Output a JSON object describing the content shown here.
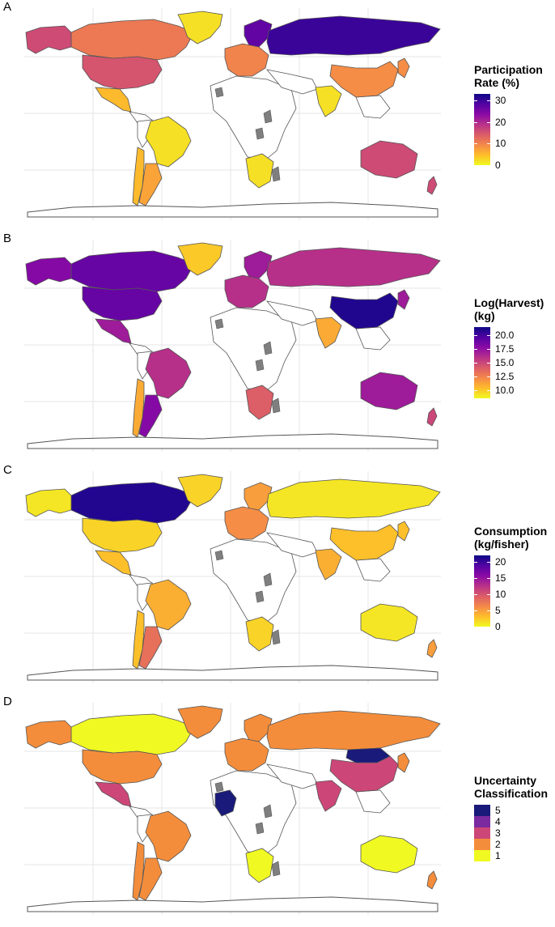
{
  "colors": {
    "no_data": "#ffffff",
    "missing": "#7f7f7f",
    "border": "#555555",
    "grid": "#e6e6e6",
    "plasma": [
      "#0d0887",
      "#5302a3",
      "#8b0aa5",
      "#b83289",
      "#db5c68",
      "#f48849",
      "#febd2a",
      "#f0f921"
    ]
  },
  "chart_data": [
    {
      "type": "choropleth",
      "panel_label": "A",
      "legend_title": [
        "Participation",
        "Rate (%)"
      ],
      "scale": "continuous",
      "range": [
        0,
        33
      ],
      "ticks": [
        0,
        10,
        20,
        30
      ],
      "tick_labels": [
        "0",
        "10",
        "20",
        "30"
      ],
      "regions": [
        {
          "name": "Canada",
          "value": 11
        },
        {
          "name": "United States",
          "value": 15
        },
        {
          "name": "Mexico",
          "value": 5
        },
        {
          "name": "Greenland",
          "value": 2
        },
        {
          "name": "Alaska",
          "value": 16
        },
        {
          "name": "Brazil",
          "value": 2
        },
        {
          "name": "Argentina",
          "value": 7
        },
        {
          "name": "Chile",
          "value": 5
        },
        {
          "name": "Scandinavia",
          "value": 27
        },
        {
          "name": "Western Europe",
          "value": 10
        },
        {
          "name": "Russia",
          "value": 30
        },
        {
          "name": "China",
          "value": 9
        },
        {
          "name": "India",
          "value": 2
        },
        {
          "name": "Japan",
          "value": 9
        },
        {
          "name": "Australia",
          "value": 16
        },
        {
          "name": "New Zealand",
          "value": 16
        },
        {
          "name": "Southern Africa",
          "value": 2
        }
      ]
    },
    {
      "type": "choropleth",
      "panel_label": "B",
      "legend_title": [
        "Log(Harvest)",
        "(kg)"
      ],
      "scale": "continuous",
      "range": [
        8.5,
        21.5
      ],
      "ticks": [
        10.0,
        12.5,
        15.0,
        17.5,
        20.0
      ],
      "tick_labels": [
        "10.0",
        "12.5",
        "15.0",
        "17.5",
        "20.0"
      ],
      "regions": [
        {
          "name": "Canada",
          "value": 19
        },
        {
          "name": "United States",
          "value": 19
        },
        {
          "name": "Mexico",
          "value": 17
        },
        {
          "name": "Greenland",
          "value": 10
        },
        {
          "name": "Alaska",
          "value": 18
        },
        {
          "name": "Brazil",
          "value": 16
        },
        {
          "name": "Argentina",
          "value": 18
        },
        {
          "name": "Chile",
          "value": 11
        },
        {
          "name": "Scandinavia",
          "value": 17
        },
        {
          "name": "Western Europe",
          "value": 16
        },
        {
          "name": "Russia",
          "value": 16
        },
        {
          "name": "China",
          "value": 21
        },
        {
          "name": "India",
          "value": 11
        },
        {
          "name": "Japan",
          "value": 17
        },
        {
          "name": "Australia",
          "value": 17
        },
        {
          "name": "New Zealand",
          "value": 15
        },
        {
          "name": "Southern Africa",
          "value": 14
        }
      ]
    },
    {
      "type": "choropleth",
      "panel_label": "C",
      "legend_title": [
        "Consumption",
        "(kg/fisher)"
      ],
      "scale": "continuous",
      "range": [
        0,
        22
      ],
      "ticks": [
        0,
        5,
        10,
        15,
        20
      ],
      "tick_labels": [
        "0",
        "5",
        "10",
        "15",
        "20"
      ],
      "regions": [
        {
          "name": "Canada",
          "value": 21
        },
        {
          "name": "United States",
          "value": 2
        },
        {
          "name": "Mexico",
          "value": 3
        },
        {
          "name": "Greenland",
          "value": 2
        },
        {
          "name": "Alaska",
          "value": 1
        },
        {
          "name": "Brazil",
          "value": 4
        },
        {
          "name": "Argentina",
          "value": 8
        },
        {
          "name": "Chile",
          "value": 3
        },
        {
          "name": "Scandinavia",
          "value": 5
        },
        {
          "name": "Western Europe",
          "value": 6
        },
        {
          "name": "Russia",
          "value": 1
        },
        {
          "name": "China",
          "value": 3
        },
        {
          "name": "India",
          "value": 4
        },
        {
          "name": "Japan",
          "value": 3
        },
        {
          "name": "Australia",
          "value": 1
        },
        {
          "name": "New Zealand",
          "value": 5
        },
        {
          "name": "Southern Africa",
          "value": 2
        }
      ]
    },
    {
      "type": "choropleth",
      "panel_label": "D",
      "legend_title": [
        "Uncertainty",
        "Classification"
      ],
      "scale": "discrete",
      "classes": [
        {
          "label": "5",
          "color": "#1a1a7a"
        },
        {
          "label": "4",
          "color": "#7b2aa0"
        },
        {
          "label": "3",
          "color": "#cc4778"
        },
        {
          "label": "2",
          "color": "#f48d3b"
        },
        {
          "label": "1",
          "color": "#f0f921"
        }
      ],
      "regions": [
        {
          "name": "Canada",
          "value": 1
        },
        {
          "name": "United States",
          "value": 2
        },
        {
          "name": "Mexico",
          "value": 3
        },
        {
          "name": "Greenland",
          "value": 2
        },
        {
          "name": "Alaska",
          "value": 2
        },
        {
          "name": "Brazil",
          "value": 2
        },
        {
          "name": "Argentina",
          "value": 2
        },
        {
          "name": "Chile",
          "value": 2
        },
        {
          "name": "Scandinavia",
          "value": 2
        },
        {
          "name": "Western Europe",
          "value": 2
        },
        {
          "name": "Russia",
          "value": 2
        },
        {
          "name": "China",
          "value": 3
        },
        {
          "name": "Mongolia",
          "value": 5
        },
        {
          "name": "India",
          "value": 3
        },
        {
          "name": "Japan",
          "value": 2
        },
        {
          "name": "Australia",
          "value": 1
        },
        {
          "name": "New Zealand",
          "value": 2
        },
        {
          "name": "Southern Africa",
          "value": 1
        },
        {
          "name": "West Africa",
          "value": 5
        }
      ]
    }
  ]
}
